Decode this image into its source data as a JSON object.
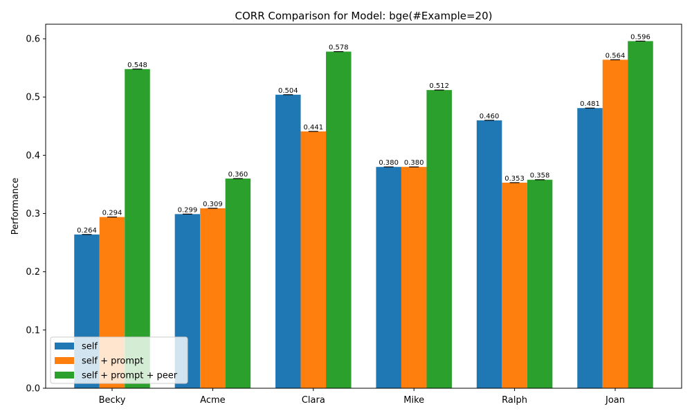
{
  "chart_data": {
    "type": "bar",
    "title": "CORR Comparison for Model: bge(#Example=20)",
    "xlabel": "",
    "ylabel": "Performance",
    "categories": [
      "Becky",
      "Acme",
      "Clara",
      "Mike",
      "Ralph",
      "Joan"
    ],
    "series": [
      {
        "name": "self",
        "color": "#1f77b4",
        "values": [
          0.264,
          0.299,
          0.504,
          0.38,
          0.46,
          0.481
        ],
        "labels": [
          "0.264",
          "0.299",
          "0.504",
          "0.380",
          "0.460",
          "0.481"
        ]
      },
      {
        "name": "self + prompt",
        "color": "#ff7f0e",
        "values": [
          0.294,
          0.309,
          0.441,
          0.38,
          0.353,
          0.564
        ],
        "labels": [
          "0.294",
          "0.309",
          "0.441",
          "0.380",
          "0.353",
          "0.564"
        ]
      },
      {
        "name": "self + prompt + peer",
        "color": "#2ca02c",
        "values": [
          0.548,
          0.36,
          0.578,
          0.512,
          0.358,
          0.596
        ],
        "labels": [
          "0.548",
          "0.360",
          "0.578",
          "0.512",
          "0.358",
          "0.596"
        ]
      }
    ],
    "ylim": [
      0,
      0.625
    ],
    "yticks": [
      "0.0",
      "0.1",
      "0.2",
      "0.3",
      "0.4",
      "0.5",
      "0.6"
    ],
    "ytick_values": [
      0,
      0.1,
      0.2,
      0.3,
      0.4,
      0.5,
      0.6
    ],
    "grid": false,
    "legend_position": "lower-left",
    "error_bars": true
  }
}
